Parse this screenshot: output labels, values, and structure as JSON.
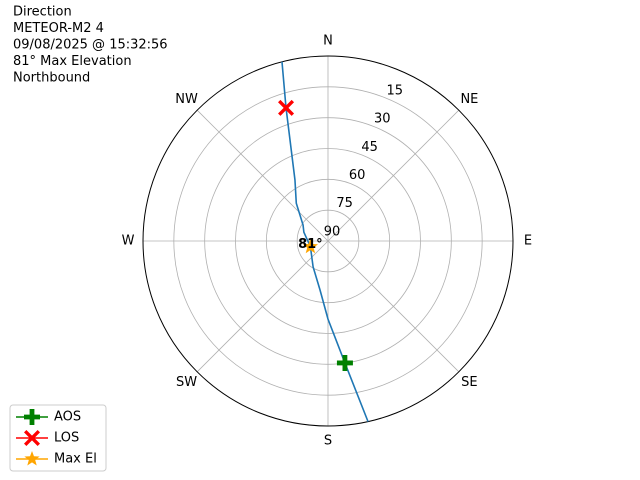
{
  "chart_data": {
    "type": "polar",
    "title_lines": [
      "Direction",
      "METEOR-M2 4",
      "09/08/2025 @ 15:32:56",
      "81° Max Elevation",
      "Northbound"
    ],
    "theta_ticks": [
      {
        "value": 0,
        "label": "N"
      },
      {
        "value": 45,
        "label": "NE"
      },
      {
        "value": 90,
        "label": "E"
      },
      {
        "value": 135,
        "label": "SE"
      },
      {
        "value": 180,
        "label": "S"
      },
      {
        "value": 225,
        "label": "SW"
      },
      {
        "value": 270,
        "label": "W"
      },
      {
        "value": 315,
        "label": "NW"
      }
    ],
    "rlim": [
      90,
      0
    ],
    "rticks": [
      15,
      30,
      45,
      60,
      75,
      90
    ],
    "grid": true,
    "legend": "lower left",
    "track": {
      "color": "#1f77b4",
      "azimuth": [
        167.5,
        172.1,
        180,
        189.3,
        210,
        252,
        290,
        302.6,
        320,
        331.6,
        342.5,
        345.6
      ],
      "elevation": [
        0,
        30.1,
        52,
        65.9,
        75.5,
        81,
        77.5,
        75.6,
        66,
        56.2,
        22.1,
        0
      ]
    },
    "series": [
      {
        "name": "AOS",
        "color": "#008000",
        "marker": "plus",
        "azimuth": [
          172.1
        ],
        "elevation": [
          30.1
        ]
      },
      {
        "name": "LOS",
        "color": "#ff0000",
        "marker": "x",
        "azimuth": [
          342.5
        ],
        "elevation": [
          22.1
        ]
      },
      {
        "name": "Max El",
        "color": "#ffa500",
        "marker": "star",
        "azimuth": [
          252
        ],
        "elevation": [
          81
        ]
      }
    ],
    "annotation": {
      "text": "81°",
      "azimuth": 252,
      "elevation": 81
    }
  }
}
